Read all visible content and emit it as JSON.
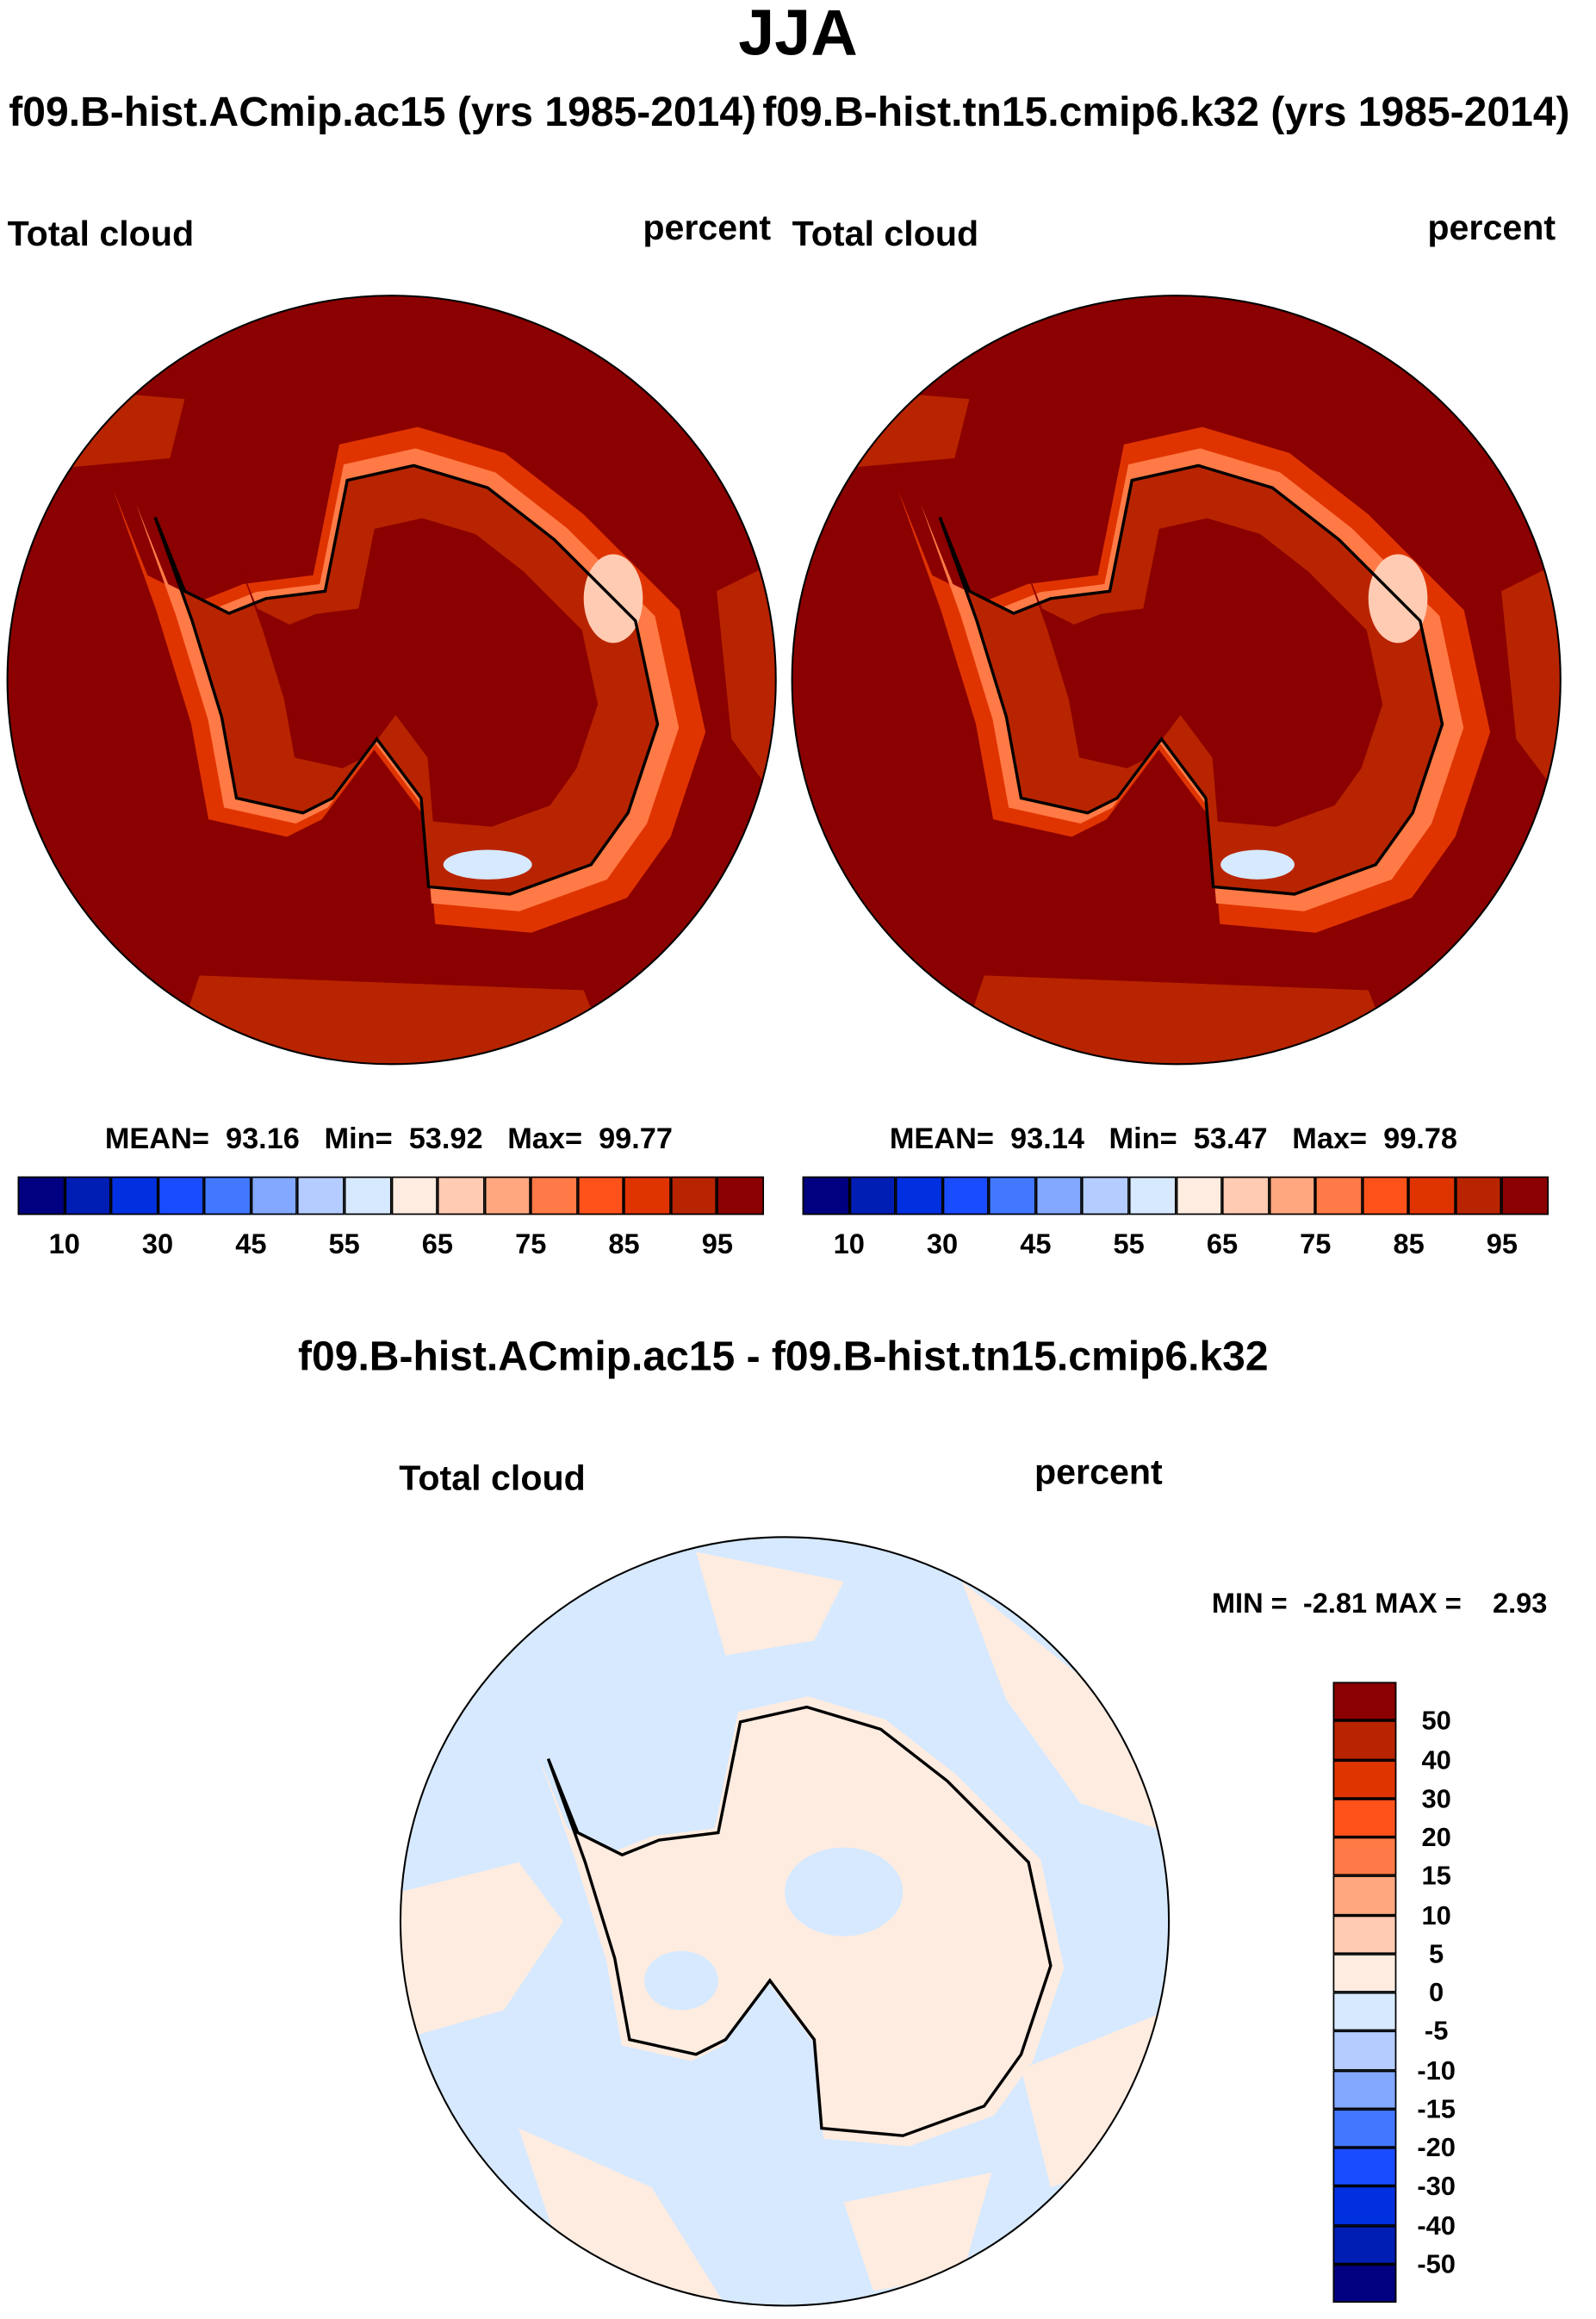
{
  "title": "JJA",
  "panels": [
    {
      "case_title": "f09.B-hist.ACmip.ac15 (yrs 1985-2014)",
      "variable": "Total cloud",
      "units": "percent",
      "stats": {
        "mean_label": "MEAN=",
        "mean": "93.16",
        "min_label": "Min=",
        "min": "53.92",
        "max_label": "Max=",
        "max": "99.77"
      }
    },
    {
      "case_title": "f09.B-hist.tn15.cmip6.k32 (yrs 1985-2014)",
      "variable": "Total cloud",
      "units": "percent",
      "stats": {
        "mean_label": "MEAN=",
        "mean": "93.14",
        "min_label": "Min=",
        "min": "53.47",
        "max_label": "Max=",
        "max": "99.78"
      }
    }
  ],
  "diff": {
    "title": "f09.B-hist.ACmip.ac15 - f09.B-hist.tn15.cmip6.k32",
    "variable": "Total cloud",
    "units": "percent",
    "minmax": "MIN =  -2.81 MAX =    2.93"
  },
  "colorbar_abs": {
    "colors": [
      "#000080",
      "#001eb4",
      "#0030e0",
      "#1a4cff",
      "#4278ff",
      "#82a8ff",
      "#b4ccff",
      "#d6e9ff",
      "#ffece0",
      "#ffcbb2",
      "#ffa880",
      "#ff7a46",
      "#ff521a",
      "#e03400",
      "#b82400",
      "#8b0000"
    ],
    "levels": [
      10,
      20,
      30,
      40,
      45,
      50,
      55,
      60,
      65,
      70,
      75,
      80,
      85,
      90,
      95
    ],
    "labels": [
      "10",
      "30",
      "45",
      "55",
      "65",
      "75",
      "85",
      "95"
    ]
  },
  "colorbar_diff": {
    "colors": [
      "#8b0000",
      "#b82400",
      "#e03400",
      "#ff521a",
      "#ff7a46",
      "#ffa880",
      "#ffcbb2",
      "#ffece0",
      "#d6e9ff",
      "#b4ccff",
      "#82a8ff",
      "#4278ff",
      "#1a4cff",
      "#0030e0",
      "#001eb4",
      "#000080"
    ],
    "labels": [
      "50",
      "40",
      "30",
      "20",
      "15",
      "10",
      "5",
      "0",
      "-5",
      "-10",
      "-15",
      "-20",
      "-30",
      "-40",
      "-50"
    ]
  }
}
